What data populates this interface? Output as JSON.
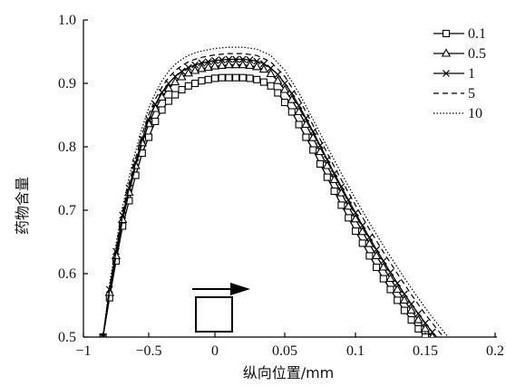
{
  "chart_data": {
    "type": "line",
    "title": "",
    "xlabel": "纵向位置/mm",
    "ylabel": "药物含量",
    "xlim": [
      -1,
      0.2
    ],
    "ylim": [
      0.5,
      1.0
    ],
    "grid": false,
    "legend_position": "top-right",
    "x_ticks": [
      {
        "value": -1,
        "label": "−1"
      },
      {
        "value": -0.5,
        "label": "−0.5"
      },
      {
        "value": 0,
        "label": "0"
      },
      {
        "value": 0.05,
        "label": "0.05"
      },
      {
        "value": 0.1,
        "label": "0.1"
      },
      {
        "value": 0.15,
        "label": "0.15"
      },
      {
        "value": 0.2,
        "label": "0.2"
      }
    ],
    "y_ticks": [
      {
        "value": 0.5,
        "label": "0.5"
      },
      {
        "value": 0.6,
        "label": "0.6"
      },
      {
        "value": 0.7,
        "label": "0.7"
      },
      {
        "value": 0.8,
        "label": "0.8"
      },
      {
        "value": 0.9,
        "label": "0.9"
      },
      {
        "value": 1.0,
        "label": "1.0"
      }
    ],
    "series": [
      {
        "name": "0.1",
        "marker": "square",
        "dash": "solid",
        "x": [
          -0.85,
          -0.8,
          -0.75,
          -0.7,
          -0.65,
          -0.6,
          -0.55,
          -0.5,
          -0.45,
          -0.4,
          -0.35,
          -0.3,
          -0.25,
          -0.2,
          -0.15,
          -0.1,
          -0.05,
          0,
          0.005,
          0.01,
          0.015,
          0.02,
          0.025,
          0.03,
          0.035,
          0.04,
          0.045,
          0.05,
          0.055,
          0.06,
          0.065,
          0.07,
          0.075,
          0.08,
          0.085,
          0.09,
          0.095,
          0.1,
          0.105,
          0.11,
          0.115,
          0.12,
          0.125,
          0.13,
          0.135,
          0.14,
          0.145,
          0.15,
          0.155,
          0.16
        ],
        "y": [
          0.5,
          0.562,
          0.62,
          0.675,
          0.715,
          0.755,
          0.79,
          0.815,
          0.84,
          0.858,
          0.872,
          0.882,
          0.89,
          0.896,
          0.9,
          0.904,
          0.906,
          0.908,
          0.909,
          0.909,
          0.909,
          0.909,
          0.908,
          0.906,
          0.902,
          0.896,
          0.885,
          0.87,
          0.855,
          0.835,
          0.815,
          0.795,
          0.773,
          0.752,
          0.73,
          0.708,
          0.688,
          0.667,
          0.648,
          0.628,
          0.61,
          0.592,
          0.575,
          0.558,
          0.542,
          0.527,
          0.513,
          0.5,
          0.49,
          0.48
        ]
      },
      {
        "name": "0.5",
        "marker": "triangle",
        "dash": "solid",
        "x": [
          -0.85,
          -0.8,
          -0.75,
          -0.7,
          -0.65,
          -0.6,
          -0.55,
          -0.5,
          -0.45,
          -0.4,
          -0.35,
          -0.3,
          -0.25,
          -0.2,
          -0.15,
          -0.1,
          -0.05,
          0,
          0.005,
          0.01,
          0.015,
          0.02,
          0.025,
          0.03,
          0.035,
          0.04,
          0.045,
          0.05,
          0.055,
          0.06,
          0.065,
          0.07,
          0.075,
          0.08,
          0.085,
          0.09,
          0.095,
          0.1,
          0.105,
          0.11,
          0.115,
          0.12,
          0.125,
          0.13,
          0.135,
          0.14,
          0.145,
          0.15,
          0.155,
          0.16,
          0.165
        ],
        "y": [
          0.5,
          0.57,
          0.628,
          0.685,
          0.728,
          0.77,
          0.806,
          0.836,
          0.86,
          0.878,
          0.892,
          0.902,
          0.91,
          0.916,
          0.92,
          0.923,
          0.925,
          0.927,
          0.928,
          0.929,
          0.929,
          0.929,
          0.928,
          0.926,
          0.922,
          0.915,
          0.904,
          0.89,
          0.874,
          0.855,
          0.835,
          0.814,
          0.792,
          0.77,
          0.748,
          0.727,
          0.706,
          0.686,
          0.666,
          0.647,
          0.628,
          0.61,
          0.592,
          0.575,
          0.558,
          0.542,
          0.527,
          0.513,
          0.5,
          0.488,
          0.478
        ]
      },
      {
        "name": "1",
        "marker": "x",
        "dash": "solid",
        "x": [
          -0.85,
          -0.8,
          -0.75,
          -0.7,
          -0.65,
          -0.6,
          -0.55,
          -0.5,
          -0.45,
          -0.4,
          -0.35,
          -0.3,
          -0.25,
          -0.2,
          -0.15,
          -0.1,
          -0.05,
          0,
          0.005,
          0.01,
          0.015,
          0.02,
          0.025,
          0.03,
          0.035,
          0.04,
          0.045,
          0.05,
          0.055,
          0.06,
          0.065,
          0.07,
          0.075,
          0.08,
          0.085,
          0.09,
          0.095,
          0.1,
          0.105,
          0.11,
          0.115,
          0.12,
          0.125,
          0.13,
          0.135,
          0.14,
          0.145,
          0.15,
          0.155,
          0.16,
          0.165
        ],
        "y": [
          0.5,
          0.575,
          0.635,
          0.692,
          0.735,
          0.775,
          0.812,
          0.843,
          0.867,
          0.886,
          0.9,
          0.911,
          0.919,
          0.925,
          0.929,
          0.932,
          0.934,
          0.936,
          0.937,
          0.938,
          0.938,
          0.938,
          0.937,
          0.935,
          0.931,
          0.924,
          0.914,
          0.9,
          0.884,
          0.865,
          0.845,
          0.824,
          0.802,
          0.78,
          0.758,
          0.737,
          0.716,
          0.696,
          0.676,
          0.657,
          0.638,
          0.62,
          0.602,
          0.585,
          0.568,
          0.552,
          0.537,
          0.522,
          0.508,
          0.495,
          0.483
        ]
      },
      {
        "name": "5",
        "marker": "none",
        "dash": "dashed",
        "x": [
          -0.85,
          -0.8,
          -0.75,
          -0.7,
          -0.65,
          -0.6,
          -0.55,
          -0.5,
          -0.45,
          -0.4,
          -0.35,
          -0.3,
          -0.25,
          -0.2,
          -0.15,
          -0.1,
          -0.05,
          0,
          0.01,
          0.02,
          0.03,
          0.04,
          0.05,
          0.06,
          0.07,
          0.08,
          0.09,
          0.1,
          0.11,
          0.12,
          0.13,
          0.14,
          0.15,
          0.16,
          0.17
        ],
        "y": [
          0.5,
          0.578,
          0.64,
          0.698,
          0.742,
          0.782,
          0.82,
          0.851,
          0.875,
          0.894,
          0.909,
          0.92,
          0.928,
          0.934,
          0.938,
          0.941,
          0.943,
          0.945,
          0.947,
          0.947,
          0.944,
          0.934,
          0.911,
          0.876,
          0.834,
          0.79,
          0.748,
          0.708,
          0.67,
          0.634,
          0.6,
          0.567,
          0.536,
          0.508,
          0.483
        ]
      },
      {
        "name": "10",
        "marker": "none",
        "dash": "dotted",
        "x": [
          -0.85,
          -0.8,
          -0.75,
          -0.7,
          -0.65,
          -0.6,
          -0.55,
          -0.5,
          -0.45,
          -0.4,
          -0.35,
          -0.3,
          -0.25,
          -0.2,
          -0.15,
          -0.1,
          -0.05,
          0,
          0.01,
          0.02,
          0.03,
          0.04,
          0.05,
          0.06,
          0.07,
          0.08,
          0.09,
          0.1,
          0.11,
          0.12,
          0.13,
          0.14,
          0.15,
          0.16,
          0.17,
          0.175
        ],
        "y": [
          0.5,
          0.583,
          0.647,
          0.706,
          0.752,
          0.793,
          0.83,
          0.861,
          0.885,
          0.904,
          0.919,
          0.93,
          0.938,
          0.944,
          0.948,
          0.951,
          0.953,
          0.955,
          0.957,
          0.957,
          0.954,
          0.944,
          0.921,
          0.885,
          0.843,
          0.8,
          0.758,
          0.718,
          0.68,
          0.644,
          0.61,
          0.577,
          0.546,
          0.517,
          0.49,
          0.478
        ]
      }
    ]
  }
}
